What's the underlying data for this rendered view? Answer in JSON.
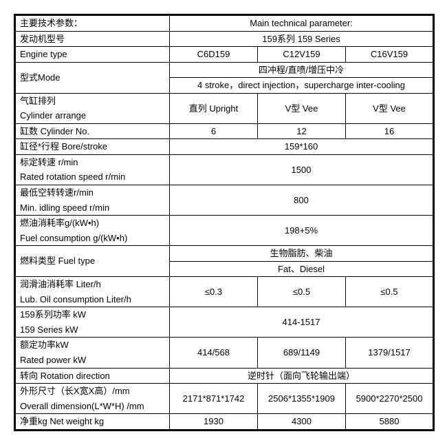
{
  "colors": {
    "border": "#000000",
    "bg": "#ffffff",
    "text": "#000000"
  },
  "typography": {
    "base_fontsize": 13,
    "font_family": "Arial / SimSun"
  },
  "header": {
    "param_label": "主要技术参数：",
    "param_label_en": "Main technical parameter:"
  },
  "engine_family": {
    "label": "发动机型号",
    "value": "159系列 159 Series"
  },
  "engine_type": {
    "label": "Engine type",
    "c1": "C6D159",
    "c2": "C12V159",
    "c3": "C16V159"
  },
  "mode": {
    "label": "型式Mode",
    "cn": "四冲程/直喷/增压中冷",
    "en": "4 stroke，direct injection，supercharge inter-cooling"
  },
  "cyl_arrange": {
    "label_cn": "气缸排列",
    "label_en": "Cylinder arrange",
    "c1": "直列 Upright",
    "c2": "V型 Vee",
    "c3": "V型 Vee"
  },
  "cyl_no": {
    "label": "缸数 Cylinder No.",
    "c1": "6",
    "c2": "12",
    "c3": "16"
  },
  "bore": {
    "label": "缸径*行程 Bore/stroke",
    "value": "159*160"
  },
  "rated_speed": {
    "label_cn": "标定转速 r/min",
    "label_en": "Rated rotation speed r/min",
    "value": "1500"
  },
  "idling": {
    "label_cn": "最低空转转速r/min",
    "label_en": "Min. idling speed r/min",
    "value": "800"
  },
  "fuel_cons": {
    "label_cn": "燃油消耗率g/(kW•h)",
    "label_en": "Fuel consumption g/(kW•h)",
    "value": "198+5%"
  },
  "fuel_type": {
    "label": "燃料类型 Fuel type",
    "cn": "生物脂肪、柴油",
    "en": "Fat、Diesel"
  },
  "lub": {
    "label_cn": "润滑油消耗率 Liter/h",
    "label_en": "Lub. Oil consumption Liter/h",
    "c1": "≤0.3",
    "c2": "≤0.5",
    "c3": "≤0.5"
  },
  "series_power": {
    "label_cn": "159系列功率 kW",
    "label_en": "159 Series kW",
    "value": "414-1517"
  },
  "rated_power": {
    "label_cn": "额定功率kW",
    "label_en": "Rated power kW",
    "c1": "414/568",
    "c2": "689/1149",
    "c3": "1379/1517"
  },
  "rotation": {
    "label": "转向 Rotation direction",
    "value": "逆时针（面向飞轮输出端）"
  },
  "dimension": {
    "label_cn": "外形尺寸（长X宽X高）/mm",
    "label_en": "Overall dimension(L*W*H) /mm",
    "c1": "2171*871*1742",
    "c2": "2506*1355*1909",
    "c3": "5900*2270*2500"
  },
  "weight": {
    "label": "净重kg Net weight kg",
    "c1": "1930",
    "c2": "4300",
    "c3": "5880"
  }
}
